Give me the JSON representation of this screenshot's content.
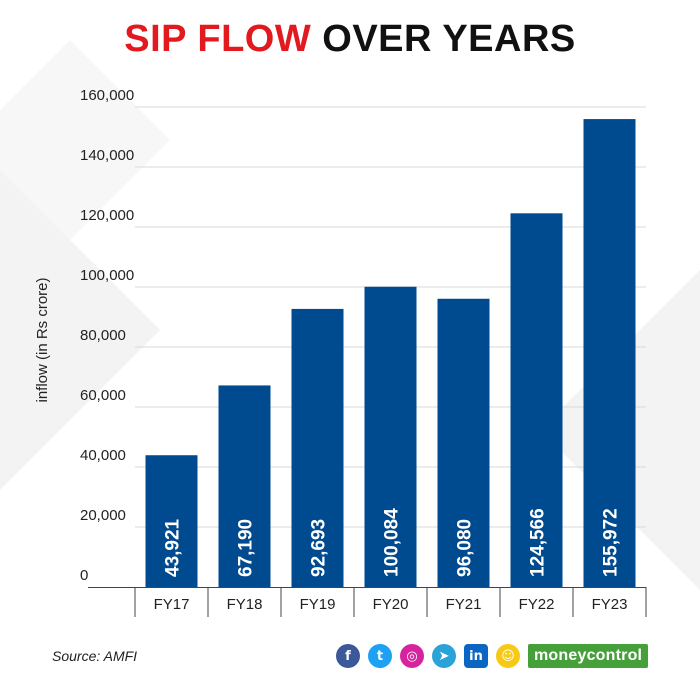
{
  "title": {
    "part1": "SIP FLOW",
    "part2": "OVER YEARS"
  },
  "colors": {
    "bar": "#004a8f",
    "title_accent": "#e21a1f",
    "title_dark": "#111111",
    "bar_label": "#ffffff",
    "brand_green": "#46a03a"
  },
  "footer": {
    "source": "Source: AMFI",
    "icons": [
      "facebook-icon",
      "twitter-icon",
      "instagram-icon",
      "telegram-icon",
      "linkedin-icon",
      "snapchat-icon"
    ],
    "brand": "moneycontrol"
  },
  "chart_data": {
    "type": "bar",
    "title": "SIP FLOW OVER YEARS",
    "xlabel": "",
    "ylabel": "inflow (in Rs crore)",
    "categories": [
      "FY17",
      "FY18",
      "FY19",
      "FY20",
      "FY21",
      "FY22",
      "FY23"
    ],
    "values": [
      43921,
      67190,
      92693,
      100084,
      96080,
      124566,
      155972
    ],
    "value_labels": [
      "43,921",
      "67,190",
      "92,693",
      "100,084",
      "96,080",
      "124,566",
      "155,972"
    ],
    "yticks": [
      "0",
      "20,000",
      "40,000",
      "60,000",
      "80,000",
      "100,000",
      "120,000",
      "140,000",
      "160,000"
    ],
    "ytick_values": [
      0,
      20000,
      40000,
      60000,
      80000,
      100000,
      120000,
      140000,
      160000
    ],
    "ylim": [
      0,
      160000
    ],
    "grid": true,
    "legend": "none"
  }
}
